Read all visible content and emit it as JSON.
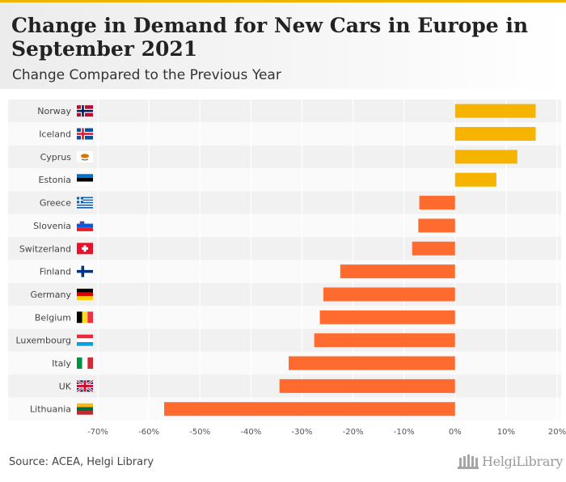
{
  "header": {
    "title": "Change in Demand for New Cars in Europe in September 2021",
    "subtitle": "Change Compared to the Previous Year"
  },
  "footer": {
    "source": "Source: ACEA, Helgi Library",
    "logo_text": "HelgiLibrary"
  },
  "colors": {
    "positive": "#f6b400",
    "negative": "#ff6a2f",
    "accent": "#f0b400"
  },
  "chart_data": {
    "type": "bar",
    "orientation": "horizontal",
    "title": "Change in Demand for New Cars in Europe in September 2021",
    "subtitle": "Change Compared to the Previous Year",
    "categories": [
      "Norway",
      "Iceland",
      "Cyprus",
      "Estonia",
      "Greece",
      "Slovenia",
      "Switzerland",
      "Finland",
      "Germany",
      "Belgium",
      "Luxembourg",
      "Italy",
      "UK",
      "Lithuania"
    ],
    "flags": [
      "norway-flag-icon",
      "iceland-flag-icon",
      "cyprus-flag-icon",
      "estonia-flag-icon",
      "greece-flag-icon",
      "slovenia-flag-icon",
      "switzerland-flag-icon",
      "finland-flag-icon",
      "germany-flag-icon",
      "belgium-flag-icon",
      "luxembourg-flag-icon",
      "italy-flag-icon",
      "uk-flag-icon",
      "lithuania-flag-icon"
    ],
    "values": [
      15.8,
      15.8,
      12.2,
      8.1,
      -7.0,
      -7.2,
      -8.4,
      -22.5,
      -25.8,
      -26.5,
      -27.6,
      -32.6,
      -34.4,
      -57.0
    ],
    "xlim": [
      -70,
      20
    ],
    "xticks": [
      -70,
      -60,
      -50,
      -40,
      -30,
      -20,
      -10,
      0,
      10,
      20
    ],
    "tick_labels": [
      "-70%",
      "-60%",
      "-50%",
      "-40%",
      "-30%",
      "-20%",
      "-10%",
      "0%",
      "10%",
      "20%"
    ],
    "grid": true,
    "legend": "none"
  }
}
